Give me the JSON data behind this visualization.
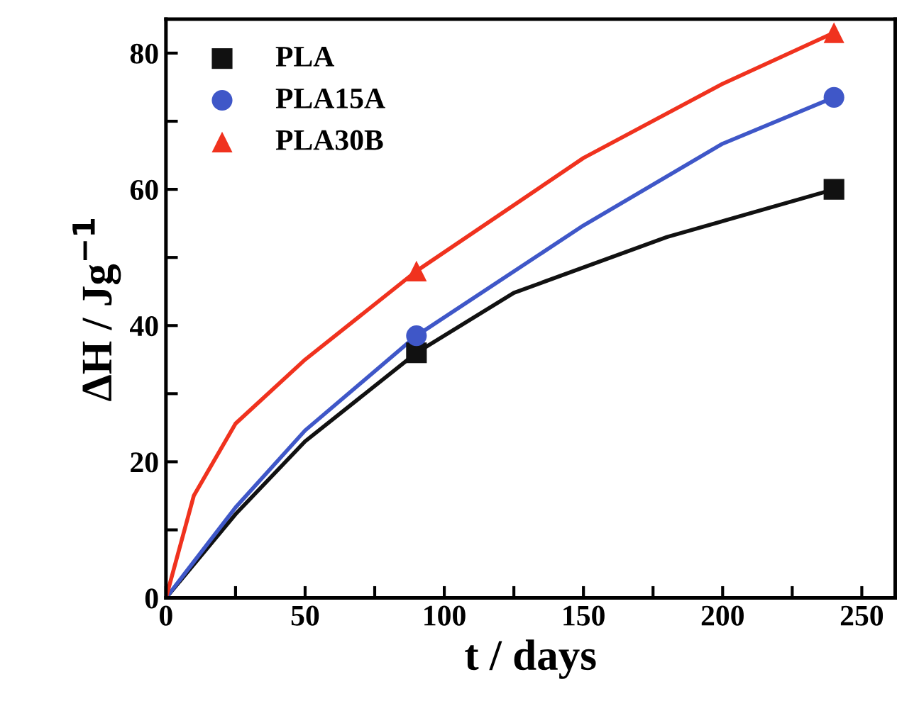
{
  "chart_data": {
    "type": "scatter",
    "xlabel": "t / days",
    "ylabel": "ΔH / Jg$^{−1}$",
    "xlim": [
      0,
      262
    ],
    "ylim": [
      0,
      85
    ],
    "xticks": [
      0,
      {
        "value": 25,
        "label": null
      },
      50,
      {
        "value": 75,
        "label": null
      },
      100,
      {
        "value": 125,
        "label": null
      },
      150,
      {
        "value": 175,
        "label": null
      },
      200,
      {
        "value": 225,
        "label": null
      },
      250
    ],
    "yticks": [
      0,
      {
        "value": 10,
        "label": null
      },
      20,
      {
        "value": 30,
        "label": null
      },
      40,
      {
        "value": 50,
        "label": null
      },
      60,
      {
        "value": 70,
        "label": null
      },
      80
    ],
    "legend": "top left",
    "grid": false,
    "series": [
      {
        "name": "PLA",
        "color": "#111111",
        "marker": "square",
        "x": [
          90,
          240
        ],
        "values": [
          36,
          60
        ]
      },
      {
        "name": "PLA15A",
        "color": "#3f57c8",
        "marker": "circle",
        "x": [
          90,
          240
        ],
        "values": [
          38.5,
          73.5
        ]
      },
      {
        "name": "PLA30B",
        "color": "#f0321e",
        "marker": "triangle",
        "x": [
          90,
          240
        ],
        "values": [
          48,
          83
        ]
      },
      {
        "type": "line",
        "color": "#111111",
        "x": [
          0,
          25,
          50,
          90,
          125,
          180,
          240
        ],
        "values": [
          0,
          12.3,
          23,
          36,
          44.8,
          53,
          60
        ]
      },
      {
        "type": "line",
        "color": "#3f57c8",
        "x": [
          0,
          25,
          50,
          90,
          150,
          200,
          240
        ],
        "values": [
          0,
          13.3,
          24.6,
          38.5,
          54.7,
          66.7,
          73.5
        ]
      },
      {
        "type": "line",
        "color": "#f0321e",
        "x": [
          0,
          10,
          25,
          50,
          90,
          150,
          200,
          240
        ],
        "values": [
          0,
          15,
          25.6,
          35,
          48,
          64.6,
          75.5,
          83
        ]
      }
    ]
  }
}
